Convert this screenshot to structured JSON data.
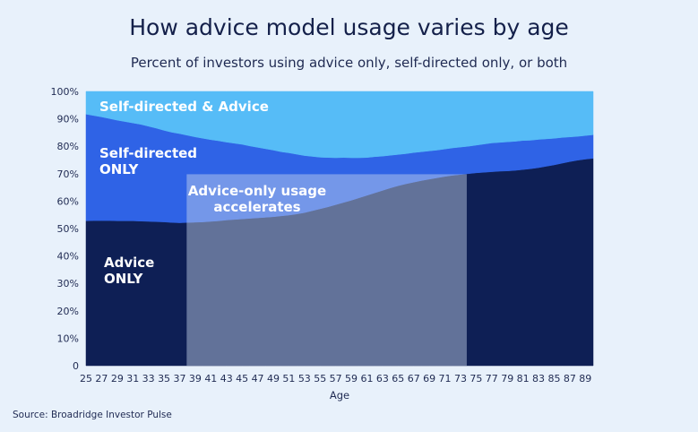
{
  "chart_data": {
    "type": "area",
    "title": "How advice model usage varies by age",
    "subtitle": "Percent of investors using advice only, self-directed only, or both",
    "xlabel": "Age",
    "ylabel": "",
    "ylim": [
      0,
      100
    ],
    "y_ticks": [
      "0",
      "10%",
      "20%",
      "30%",
      "40%",
      "50%",
      "60%",
      "70%",
      "80%",
      "90%",
      "100%"
    ],
    "x": [
      25,
      26,
      27,
      28,
      29,
      30,
      31,
      32,
      33,
      34,
      35,
      36,
      37,
      38,
      39,
      40,
      41,
      42,
      43,
      44,
      45,
      46,
      47,
      48,
      49,
      50,
      51,
      52,
      53,
      54,
      55,
      56,
      57,
      58,
      59,
      60,
      61,
      62,
      63,
      64,
      65,
      66,
      67,
      68,
      69,
      70,
      71,
      72,
      73,
      74,
      75,
      76,
      77,
      78,
      79,
      80,
      81,
      82,
      83,
      84,
      85,
      86,
      87,
      88,
      89,
      90
    ],
    "x_ticks": [
      "25",
      "27",
      "29",
      "31",
      "33",
      "35",
      "37",
      "39",
      "41",
      "43",
      "45",
      "47",
      "49",
      "51",
      "53",
      "55",
      "57",
      "59",
      "61",
      "63",
      "65",
      "67",
      "69",
      "71",
      "73",
      "75",
      "77",
      "79",
      "81",
      "83",
      "85",
      "87",
      "89"
    ],
    "series": [
      {
        "name": "Advice ONLY",
        "color": "#0e1f55",
        "values": [
          52.8,
          52.9,
          52.9,
          52.9,
          52.8,
          52.8,
          52.8,
          52.7,
          52.6,
          52.5,
          52.4,
          52.2,
          52.1,
          52.2,
          52.3,
          52.4,
          52.6,
          52.8,
          53.1,
          53.3,
          53.5,
          53.7,
          53.9,
          54.1,
          54.3,
          54.6,
          54.9,
          55.3,
          55.8,
          56.5,
          57.2,
          57.9,
          58.7,
          59.5,
          60.3,
          61.2,
          62.1,
          63.0,
          63.9,
          64.8,
          65.6,
          66.3,
          66.9,
          67.5,
          68.0,
          68.5,
          69.0,
          69.4,
          69.7,
          70.0,
          70.3,
          70.5,
          70.7,
          70.9,
          71.0,
          71.2,
          71.5,
          71.8,
          72.2,
          72.7,
          73.2,
          73.8,
          74.4,
          74.9,
          75.3,
          75.6
        ]
      },
      {
        "name": "Self-directed ONLY",
        "color": "#2f63e6",
        "values": [
          38.9,
          38.3,
          37.8,
          37.2,
          36.7,
          36.2,
          35.7,
          35.3,
          34.7,
          34.1,
          33.4,
          32.9,
          32.5,
          31.8,
          31.1,
          30.5,
          29.8,
          29.2,
          28.4,
          27.8,
          27.2,
          26.4,
          25.7,
          25.0,
          24.3,
          23.4,
          22.7,
          21.8,
          20.8,
          19.8,
          18.8,
          18.0,
          17.1,
          16.4,
          15.5,
          14.6,
          13.8,
          13.2,
          12.5,
          11.9,
          11.4,
          11.0,
          10.8,
          10.5,
          10.3,
          10.1,
          10.0,
          10.0,
          10.0,
          10.0,
          10.1,
          10.3,
          10.5,
          10.5,
          10.6,
          10.6,
          10.6,
          10.4,
          10.3,
          10.0,
          9.7,
          9.4,
          9.0,
          8.7,
          8.6,
          8.6
        ]
      },
      {
        "name": "Self-directed & Advice",
        "color": "#56bcf7",
        "values": [
          8.3,
          8.8,
          9.3,
          9.9,
          10.5,
          11.0,
          11.5,
          12.0,
          12.7,
          13.4,
          14.2,
          14.9,
          15.4,
          16.0,
          16.6,
          17.1,
          17.6,
          18.0,
          18.5,
          18.9,
          19.3,
          19.9,
          20.4,
          20.9,
          21.4,
          22.0,
          22.4,
          22.9,
          23.4,
          23.7,
          24.0,
          24.1,
          24.2,
          24.1,
          24.2,
          24.2,
          24.1,
          23.8,
          23.6,
          23.3,
          23.0,
          22.7,
          22.3,
          22.0,
          21.7,
          21.4,
          21.0,
          20.6,
          20.3,
          20.0,
          19.6,
          19.2,
          18.8,
          18.6,
          18.4,
          18.2,
          17.9,
          17.8,
          17.5,
          17.3,
          17.1,
          16.8,
          16.6,
          16.4,
          16.1,
          15.8
        ]
      }
    ],
    "highlight": {
      "x_start": 37.9,
      "x_end": 73.8,
      "y_top": 69.8
    },
    "annotations": {
      "advice_only": [
        "Advice",
        "ONLY"
      ],
      "self_directed_only": [
        "Self-directed",
        "ONLY"
      ],
      "both": [
        "Self-directed & Advice"
      ],
      "highlight": [
        "Advice-only usage",
        "accelerates"
      ]
    }
  },
  "source": "Source: Broadridge Investor Pulse"
}
